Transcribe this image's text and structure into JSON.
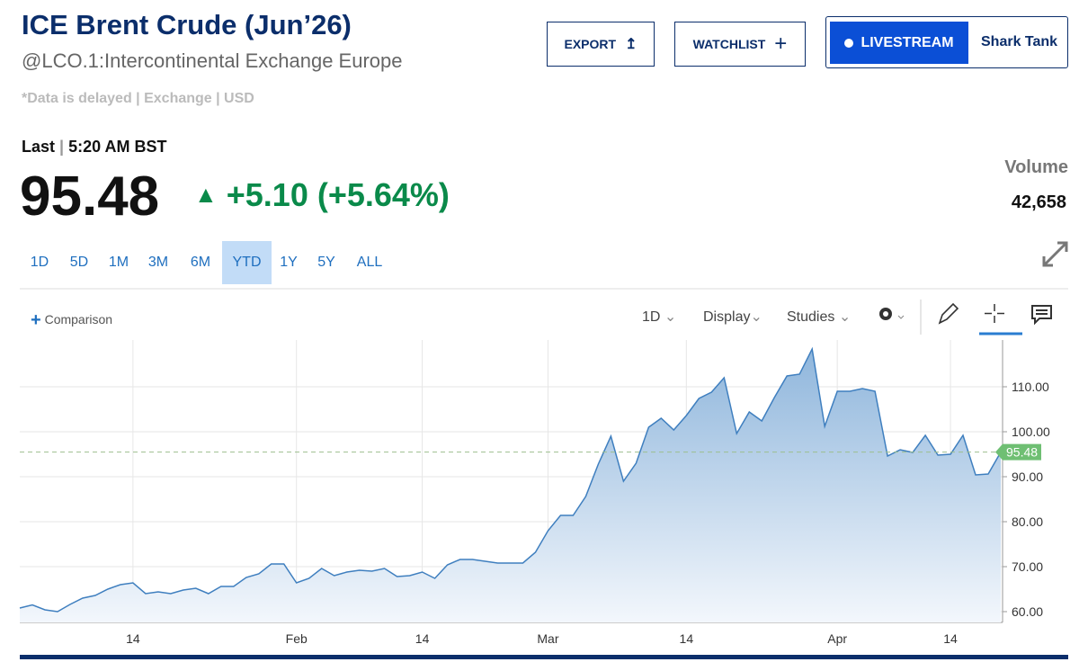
{
  "header": {
    "title": "ICE Brent Crude (Jun’26)",
    "subtitle": "@LCO.1:Intercontinental Exchange Europe",
    "disclaimer": "*Data is delayed | Exchange | USD",
    "last_label": "Last",
    "time": "5:20 AM BST",
    "price": "95.48",
    "change": "+5.10 (+5.64%)",
    "volume_label": "Volume",
    "volume": "42,658"
  },
  "buttons": {
    "export": "EXPORT",
    "watchlist": "WATCHLIST",
    "livestream": "LIVESTREAM",
    "show": "Shark Tank"
  },
  "ranges": [
    "1D",
    "5D",
    "1M",
    "3M",
    "6M",
    "YTD",
    "1Y",
    "5Y",
    "ALL"
  ],
  "toolbar": {
    "comparison": "Comparison",
    "interval": "1D",
    "display": "Display",
    "studies": "Studies"
  },
  "chart_data": {
    "type": "area",
    "color": "#3f7fbf",
    "categories": [
      null,
      null,
      null,
      null,
      null,
      null,
      null,
      null,
      null,
      "14",
      null,
      null,
      null,
      null,
      null,
      null,
      null,
      null,
      null,
      null,
      null,
      null,
      "Feb",
      null,
      null,
      null,
      null,
      null,
      null,
      null,
      null,
      null,
      "14",
      null,
      null,
      null,
      null,
      null,
      null,
      null,
      null,
      null,
      "Mar",
      null,
      null,
      null,
      null,
      null,
      null,
      null,
      null,
      null,
      null,
      "14",
      null,
      null,
      null,
      null,
      null,
      null,
      null,
      null,
      null,
      null,
      null,
      "Apr",
      null,
      null,
      null,
      null,
      null,
      null,
      null,
      null,
      "14",
      null,
      null,
      null,
      null
    ],
    "values": [
      60.8,
      61.5,
      60.4,
      60,
      61.6,
      63,
      63.6,
      65,
      66,
      66.4,
      64,
      64.4,
      64,
      64.8,
      65.2,
      64,
      65.6,
      65.6,
      67.6,
      68.4,
      70.6,
      70.6,
      66.4,
      67.4,
      69.6,
      68,
      68.8,
      69.2,
      69,
      69.6,
      67.8,
      68,
      68.8,
      67.4,
      70.4,
      71.6,
      71.6,
      71.2,
      70.8,
      70.8,
      70.8,
      73.2,
      78,
      81.4,
      81.4,
      85.6,
      92.8,
      99,
      89,
      93,
      101,
      103,
      100.4,
      103.6,
      107.4,
      108.8,
      112,
      99.6,
      104.4,
      102.4,
      107.6,
      112.4,
      112.8,
      118.4,
      101.2,
      109,
      109,
      109.6,
      109,
      94.6,
      96,
      95.4,
      99.2,
      94.8,
      95,
      99.2,
      90.4,
      90.6,
      95.48
    ],
    "ylim": [
      57.6,
      120.4
    ],
    "yticks": [
      {
        "value": 60,
        "label": "60.00"
      },
      {
        "value": 70,
        "label": "70.00"
      },
      {
        "value": 80,
        "label": "80.00"
      },
      {
        "value": 90,
        "label": "90.00"
      },
      {
        "value": 100,
        "label": "100.00"
      },
      {
        "value": 110,
        "label": "110.00"
      }
    ],
    "grid": true
  }
}
